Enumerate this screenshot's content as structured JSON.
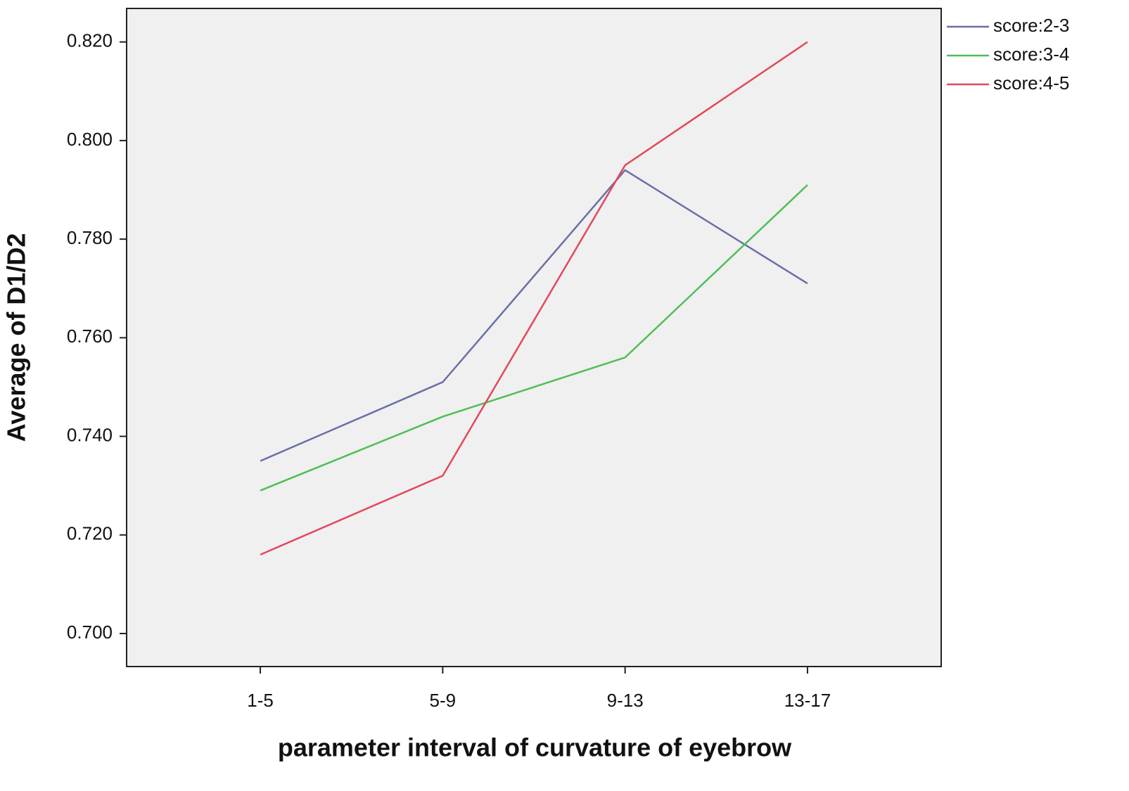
{
  "chart_data": {
    "type": "line",
    "x_label": "parameter interval of curvature of eyebrow",
    "y_label": "Average of D1/D2",
    "categories": [
      "1-5",
      "5-9",
      "9-13",
      "13-17"
    ],
    "series": [
      {
        "name": "score:2-3",
        "color": "#6a6fa8",
        "values": [
          0.735,
          0.751,
          0.794,
          0.771
        ]
      },
      {
        "name": "score:3-4",
        "color": "#4fbf55",
        "values": [
          0.729,
          0.744,
          0.756,
          0.791
        ]
      },
      {
        "name": "score:4-5",
        "color": "#e2485c",
        "values": [
          0.716,
          0.732,
          0.795,
          0.82
        ]
      }
    ],
    "ylim": [
      0.6933,
      0.8268
    ],
    "yticks": [
      {
        "value": 0.7,
        "label": "0.700"
      },
      {
        "value": 0.72,
        "label": "0.720"
      },
      {
        "value": 0.74,
        "label": "0.740"
      },
      {
        "value": 0.76,
        "label": "0.760"
      },
      {
        "value": 0.78,
        "label": "0.780"
      },
      {
        "value": 0.8,
        "label": "0.800"
      },
      {
        "value": 0.82,
        "label": "0.820"
      }
    ],
    "legend_position": "upper right outside"
  }
}
